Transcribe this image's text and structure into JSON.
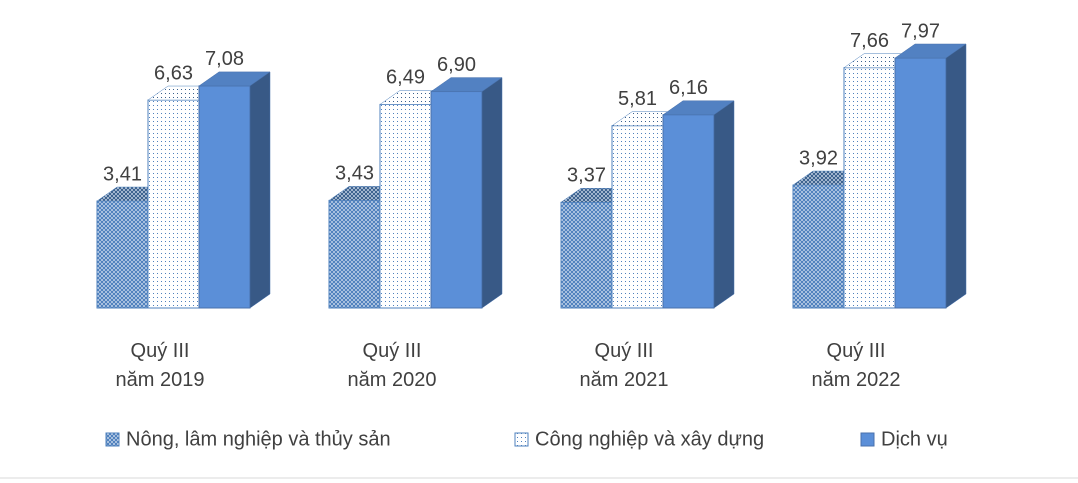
{
  "chart_data": {
    "type": "bar3d",
    "categories": [
      "Quý III\nnăm 2019",
      "Quý III\nnăm 2020",
      "Quý III\nnăm 2021",
      "Quý III\nnăm 2022"
    ],
    "series": [
      {
        "name": "Nông, lâm nghiệp và thủy sản",
        "color": "#4f81bd",
        "fill_style": "crosshatch",
        "values": [
          3.41,
          3.43,
          3.37,
          3.92
        ],
        "value_labels": [
          "3,41",
          "3,43",
          "3,37",
          "3,92"
        ]
      },
      {
        "name": "Công nghiệp và xây dựng",
        "color": "#4f81bd",
        "fill_style": "dots",
        "values": [
          6.63,
          6.49,
          5.81,
          7.66
        ],
        "value_labels": [
          "6,63",
          "6,49",
          "5,81",
          "7,66"
        ]
      },
      {
        "name": "Dịch vụ",
        "color": "#5b8fd8",
        "fill_style": "solid",
        "values": [
          7.08,
          6.9,
          6.16,
          7.97
        ],
        "value_labels": [
          "7,08",
          "6,90",
          "6,16",
          "7,97"
        ]
      }
    ],
    "legend": "bottom"
  }
}
